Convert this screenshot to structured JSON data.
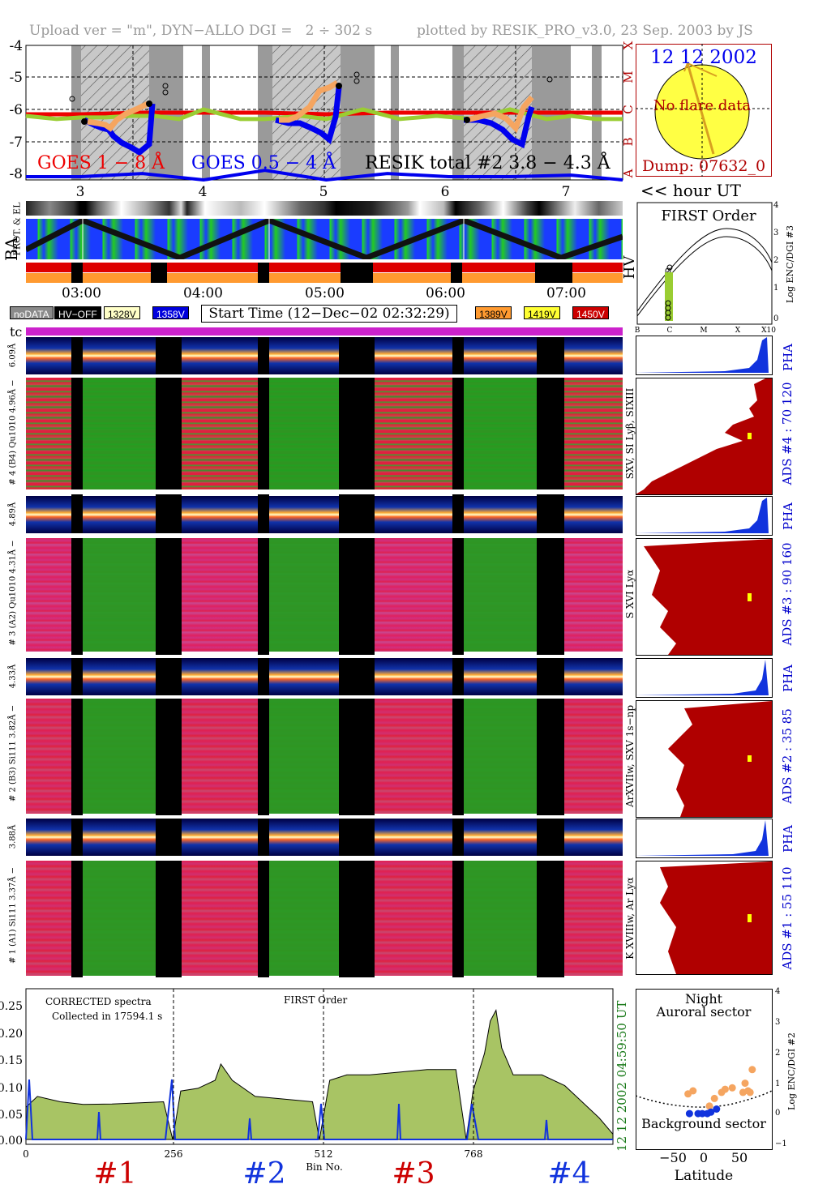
{
  "header": {
    "left": "Upload ver = \"m\", DYN−ALLO DGI =   2 ÷ 302 s",
    "right": "plotted by RESIK_PRO_v3.0, 23 Sep. 2003 by JS"
  },
  "goes_panel": {
    "y_ticks": [
      "-4",
      "-5",
      "-6",
      "-7",
      "-8"
    ],
    "class_letters": [
      "X",
      "M",
      "C",
      "B",
      "A"
    ],
    "labels": {
      "goes_long": "GOES 1 − 8 Å",
      "goes_short": "GOES 0.5 − 4 Å",
      "resik_total": "RESIK total #2  3.8 − 4.3 Å"
    },
    "hour_ticks": [
      "3",
      "4",
      "5",
      "6",
      "7"
    ],
    "hour_ut_label": "<< hour UT"
  },
  "sun_panel": {
    "date": "12 12 2002",
    "no_flare": "No flare data",
    "dump": "Dump: 07632_0"
  },
  "status_panel": {
    "prot_label": "PROT. & EL",
    "ba_label": "BA",
    "time_ticks": [
      "03:00",
      "04:00",
      "05:00",
      "06:00",
      "07:00"
    ]
  },
  "first_order": {
    "title": "FIRST Order",
    "y_ticks": [
      "4",
      "3",
      "2",
      "1",
      "0"
    ],
    "y_label": "Log ENC/DGI #3",
    "x_ticks": [
      "B",
      "C",
      "M",
      "X",
      "X10"
    ],
    "hv_label": "HV"
  },
  "legend": {
    "nodata": "noDATA",
    "hvoff": "HV−OFF",
    "v1": "1328V",
    "v2": "1358V",
    "start_time": "Start Time (12−Dec−02 02:32:29)",
    "v3": "1389V",
    "v4": "1419V",
    "v5": "1450V"
  },
  "tc_label": "tc",
  "channels": [
    {
      "pha_left": "6.09Å",
      "spec_left": "# 4 (B4) Qu1010 4.96Å −",
      "ion": "SXV, SI Lyβ, SIXIII",
      "ads": "ADS #4 :   70 120",
      "pha": "PHA"
    },
    {
      "pha_left": "4.89Å",
      "spec_left": "# 3 (A2) Qu1010 4.31Å −",
      "ion": "S XVI Lyα",
      "ads": "ADS #3 :   90 160",
      "pha": "PHA"
    },
    {
      "pha_left": "4.33Å",
      "spec_left": "# 2 (B3) Si111 3.82Å −",
      "ion": "ArXVIIw, SXV 1s−np",
      "ads": "ADS #2 :   35  85",
      "pha": "PHA"
    },
    {
      "pha_left": "3.88Å",
      "spec_left": "# 1 (A1) Si111 3.37Å −",
      "ion": "K XVIIIw, Ar Lyα",
      "ads": "ADS #1 :   55 110",
      "pha": "PHA"
    }
  ],
  "corrected_panel": {
    "title1": "CORRECTED spectra",
    "title2": "Collected in 17594.1 s",
    "center_label": "FIRST Order",
    "time_label": "04:59:50 UT",
    "date_label": "12 12 2002",
    "x_ticks": [
      "0",
      "256",
      "512",
      "768"
    ],
    "y_ticks": [
      "0.25",
      "0.20",
      "0.15",
      "0.10",
      "0.05",
      "0.00"
    ],
    "xlabel": "Bin No.",
    "channel_labels": [
      "#1",
      "#2",
      "#3",
      "#4"
    ]
  },
  "latitude_panel": {
    "title1": "Night",
    "title2": "Auroral sector",
    "bottom": "Background sector",
    "x_ticks": [
      "−50",
      "0",
      "50"
    ],
    "y_ticks": [
      "4",
      "3",
      "2",
      "1",
      "0",
      "−1"
    ],
    "xlabel": "Latitude",
    "ylabel": "Log ENC/DGI #2",
    "orange_points": [
      [
        -22,
        0.7
      ],
      [
        -15,
        0.8
      ],
      [
        8,
        0.3
      ],
      [
        15,
        0.55
      ],
      [
        25,
        0.75
      ],
      [
        30,
        0.85
      ],
      [
        40,
        0.9
      ],
      [
        55,
        0.75
      ],
      [
        58,
        1.05
      ],
      [
        62,
        0.8
      ],
      [
        65,
        0.75
      ],
      [
        68,
        1.5
      ]
    ],
    "blue_points": [
      [
        -20,
        0.05
      ],
      [
        -8,
        0.05
      ],
      [
        -2,
        0.05
      ],
      [
        5,
        0.05
      ],
      [
        10,
        0.1
      ],
      [
        18,
        0.2
      ]
    ]
  },
  "chart_data": [
    {
      "type": "line",
      "title": "",
      "x_label": "hour UT",
      "xlim": [
        2.55,
        7.42
      ],
      "ylim": [
        -8.1,
        -3.9
      ],
      "series": [
        {
          "name": "GOES 1 − 8 Å",
          "color": "#ee0000",
          "x": [
            2.55,
            3.0,
            3.5,
            4.0,
            4.5,
            5.0,
            5.5,
            6.0,
            6.5,
            7.0,
            7.42
          ],
          "y": [
            -6.05,
            -6.05,
            -6.0,
            -6.0,
            -6.0,
            -6.05,
            -6.0,
            -6.0,
            -6.0,
            -6.0,
            -6.0
          ]
        },
        {
          "name": "GOES 0.5 − 4 Å",
          "color": "#0000ee",
          "x": [
            2.55,
            3.0,
            3.5,
            4.0,
            4.5,
            5.0,
            5.5,
            6.0,
            6.5,
            7.0,
            7.42
          ],
          "y": [
            -8.0,
            -8.0,
            -7.9,
            -8.1,
            -7.8,
            -8.1,
            -7.9,
            -8.0,
            -8.0,
            -7.95,
            -8.1
          ]
        },
        {
          "name": "RESIK total #2  3.8 − 4.3 Å",
          "color": "#9acd32",
          "x": [
            2.55,
            2.8,
            3.0,
            3.2,
            3.4,
            3.6,
            3.8,
            4.0,
            4.3,
            4.5,
            4.8,
            5.0,
            5.3,
            5.6,
            5.9,
            6.2,
            6.5,
            6.8,
            7.0,
            7.2,
            7.42
          ],
          "y": [
            -6.1,
            -6.2,
            -6.15,
            -6.15,
            -6.1,
            -6.1,
            -6.2,
            -5.9,
            -6.2,
            -6.2,
            -6.1,
            -6.2,
            -5.9,
            -6.2,
            -6.1,
            -6.2,
            -5.9,
            -6.2,
            -6.1,
            -6.2,
            -6.2
          ]
        }
      ]
    },
    {
      "type": "area",
      "title": "",
      "x_label": "Bin No.",
      "xlim": [
        0,
        1024
      ],
      "ylim": [
        0,
        0.28
      ],
      "series": [
        {
          "name": "CORRECTED spectra",
          "color": "#a8c464",
          "x": [
            0,
            20,
            60,
            100,
            150,
            200,
            240,
            256,
            270,
            300,
            330,
            340,
            360,
            400,
            500,
            512,
            530,
            560,
            600,
            650,
            700,
            750,
            768,
            780,
            800,
            810,
            820,
            830,
            850,
            900,
            940,
            960,
            1000,
            1024
          ],
          "y": [
            0.06,
            0.08,
            0.07,
            0.065,
            0.066,
            0.068,
            0.07,
            0.0,
            0.09,
            0.095,
            0.11,
            0.14,
            0.11,
            0.08,
            0.07,
            0.0,
            0.11,
            0.12,
            0.12,
            0.125,
            0.13,
            0.13,
            0.0,
            0.09,
            0.16,
            0.22,
            0.24,
            0.17,
            0.12,
            0.12,
            0.1,
            0.08,
            0.04,
            0.01
          ]
        }
      ]
    }
  ]
}
